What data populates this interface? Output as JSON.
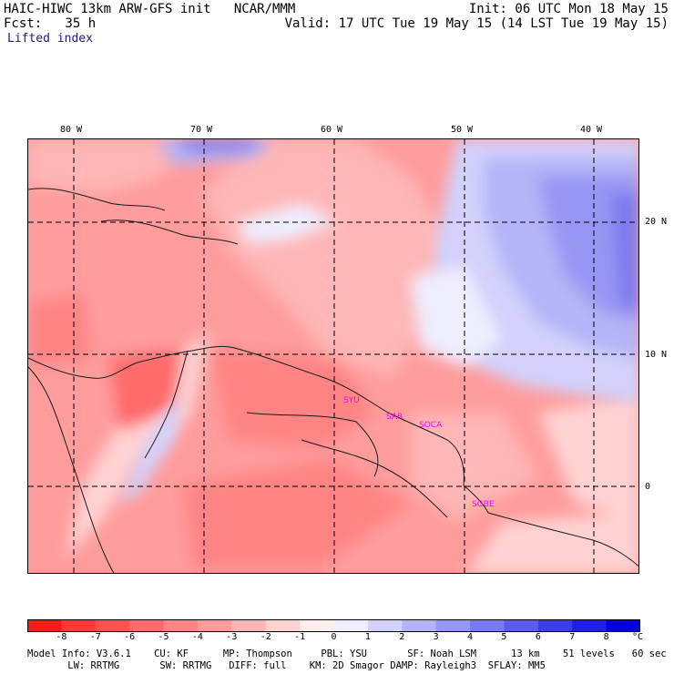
{
  "header": {
    "left_line1": "HAIC-HIWC 13km ARW-GFS init   NCAR/MMM",
    "left_line2": "Fcst:   35 h",
    "right_line1": "Init: 06 UTC Mon 18 May 15",
    "right_line2": "Valid: 17 UTC Tue 19 May 15 (14 LST Tue 19 May 15)",
    "field": "Lifted index"
  },
  "map": {
    "lon_labels": [
      "80 W",
      "70 W",
      "60 W",
      "50 W",
      "40 W"
    ],
    "lat_labels": [
      "20 N",
      "10 N",
      "0"
    ],
    "markers": [
      "SYU",
      "SAR",
      "SOCA",
      "SGBE"
    ]
  },
  "colorbar": {
    "unit": "°C",
    "tick_labels": [
      "-8",
      "-7",
      "-6",
      "-5",
      "-4",
      "-3",
      "-2",
      "-1",
      "0",
      "1",
      "2",
      "3",
      "4",
      "5",
      "6",
      "7",
      "8"
    ],
    "colors": [
      "#ff1a1a",
      "#ff3838",
      "#ff5252",
      "#ff6b6b",
      "#ff8484",
      "#ff9c9c",
      "#ffb6b6",
      "#ffd2d2",
      "#ffeeee",
      "#eeeefe",
      "#d2d2fc",
      "#b4b4f8",
      "#9696f4",
      "#7a7af0",
      "#5c5cec",
      "#3e3ee8",
      "#2020e4",
      "#0000dd"
    ]
  },
  "footer": {
    "line1": "Model Info: V3.6.1    CU: KF      MP: Thompson     PBL: YSU       SF: Noah LSM      13 km    51 levels   60 sec",
    "line2": "       LW: RRTMG       SW: RRTMG   DIFF: full    KM: 2D Smagor DAMP: Rayleigh3  SFLAY: MM5"
  }
}
